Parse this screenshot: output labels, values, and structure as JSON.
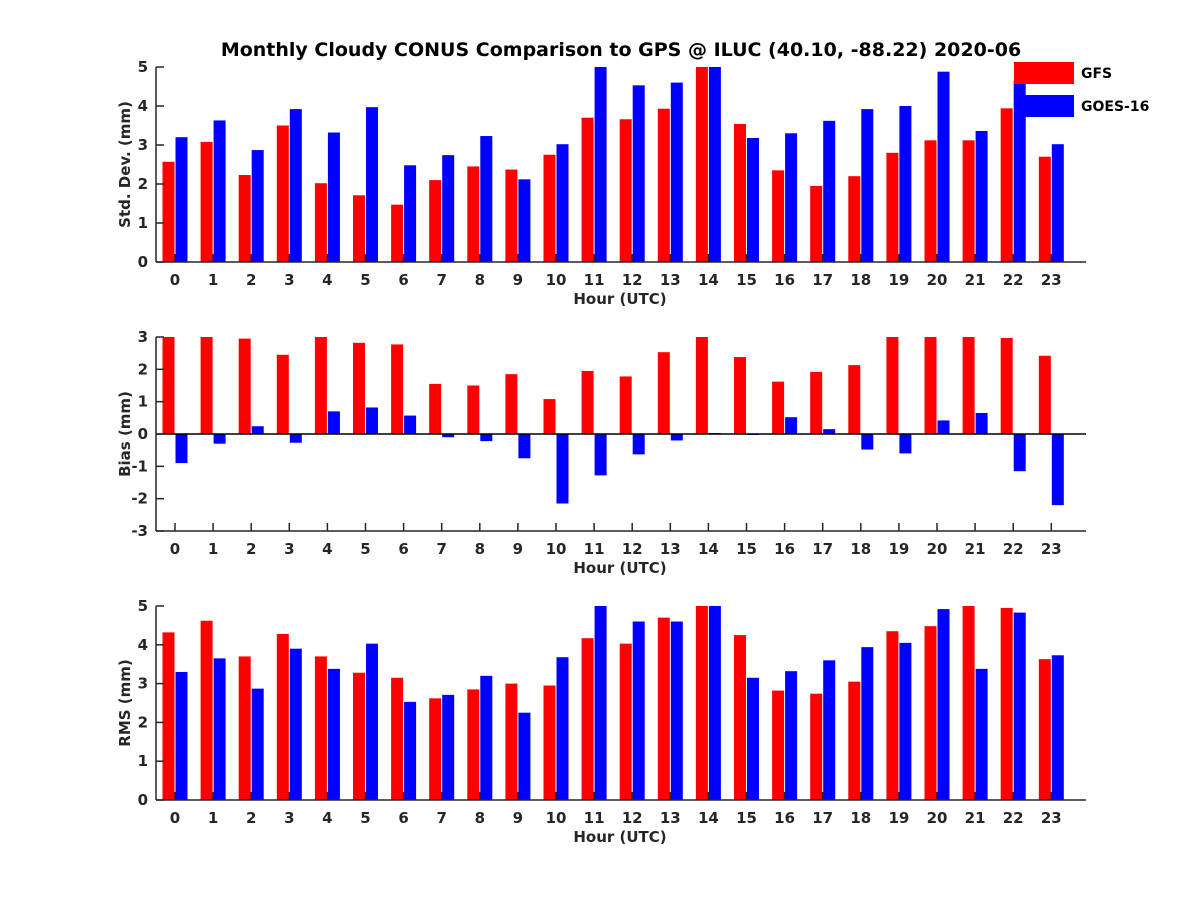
{
  "chart_data": {
    "title": "Monthly Cloudy CONUS Comparison to GPS @ ILUC (40.10, -88.22) 2020-06",
    "type": "bar",
    "legend": {
      "position": "top-right",
      "entries": [
        {
          "name": "GFS",
          "color": "#ff0000"
        },
        {
          "name": "GOES-16",
          "color": "#0000ff"
        }
      ]
    },
    "categories": [
      "0",
      "1",
      "2",
      "3",
      "4",
      "5",
      "6",
      "7",
      "8",
      "9",
      "10",
      "11",
      "12",
      "13",
      "14",
      "15",
      "16",
      "17",
      "18",
      "19",
      "20",
      "21",
      "22",
      "23"
    ],
    "panels": [
      {
        "id": "stddev",
        "ylabel": "Std. Dev. (mm)",
        "xlabel": "Hour (UTC)",
        "ylim": [
          0,
          5
        ],
        "yticks": [
          "0",
          "1",
          "2",
          "3",
          "4",
          "5"
        ],
        "series": [
          {
            "name": "GFS",
            "values": [
              2.57,
              3.08,
              2.23,
              3.5,
              2.02,
              1.71,
              1.47,
              2.1,
              2.45,
              2.37,
              2.75,
              3.7,
              3.66,
              3.93,
              5.0,
              3.54,
              2.35,
              1.95,
              2.2,
              2.8,
              3.12,
              3.12,
              3.94,
              2.7
            ]
          },
          {
            "name": "GOES-16",
            "values": [
              3.2,
              3.63,
              2.87,
              3.92,
              3.32,
              3.97,
              2.48,
              2.74,
              3.23,
              2.12,
              3.02,
              5.0,
              4.53,
              4.6,
              5.0,
              3.18,
              3.3,
              3.62,
              3.92,
              4.0,
              4.88,
              3.36,
              4.65,
              3.02
            ]
          }
        ]
      },
      {
        "id": "bias",
        "ylabel": "Bias (mm)",
        "xlabel": "Hour (UTC)",
        "ylim": [
          -3,
          3
        ],
        "yticks": [
          "-3",
          "-2",
          "-1",
          "0",
          "1",
          "2",
          "3"
        ],
        "series": [
          {
            "name": "GFS",
            "values": [
              3.0,
              3.0,
              2.95,
              2.45,
              3.0,
              2.82,
              2.77,
              1.55,
              1.5,
              1.85,
              1.08,
              1.95,
              1.78,
              2.53,
              3.0,
              2.38,
              1.62,
              1.92,
              2.13,
              3.0,
              3.0,
              3.0,
              2.97,
              2.42
            ]
          },
          {
            "name": "GOES-16",
            "values": [
              -0.9,
              -0.3,
              0.24,
              -0.27,
              0.7,
              0.82,
              0.57,
              -0.1,
              -0.22,
              -0.75,
              -2.15,
              -1.28,
              -0.63,
              -0.2,
              0.03,
              -0.03,
              0.52,
              0.15,
              -0.48,
              -0.6,
              0.42,
              0.65,
              -1.15,
              -2.2
            ]
          }
        ]
      },
      {
        "id": "rms",
        "ylabel": "RMS (mm)",
        "xlabel": "Hour (UTC)",
        "ylim": [
          0,
          5
        ],
        "yticks": [
          "0",
          "1",
          "2",
          "3",
          "4",
          "5"
        ],
        "series": [
          {
            "name": "GFS",
            "values": [
              4.32,
              4.62,
              3.7,
              4.28,
              3.7,
              3.28,
              3.15,
              2.62,
              2.85,
              3.0,
              2.95,
              4.17,
              4.03,
              4.7,
              5.0,
              4.25,
              2.82,
              2.74,
              3.05,
              4.35,
              4.48,
              5.0,
              4.95,
              3.63
            ]
          },
          {
            "name": "GOES-16",
            "values": [
              3.3,
              3.65,
              2.87,
              3.9,
              3.38,
              4.03,
              2.53,
              2.71,
              3.2,
              2.25,
              3.68,
              5.0,
              4.6,
              4.6,
              5.0,
              3.15,
              3.32,
              3.6,
              3.94,
              4.05,
              4.92,
              3.38,
              4.83,
              3.73
            ]
          }
        ]
      }
    ]
  }
}
